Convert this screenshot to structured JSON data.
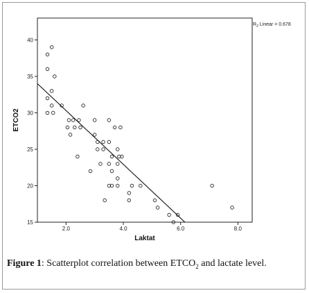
{
  "chart_data": {
    "type": "scatter",
    "title": "",
    "xlabel": "Laktat",
    "ylabel": "ETCO2",
    "xlim": [
      1.0,
      8.5
    ],
    "ylim": [
      15,
      43
    ],
    "xticks": [
      2.0,
      4.0,
      6.0,
      8.0
    ],
    "xtick_labels": [
      "2.0",
      "4.0",
      "6.0",
      "8.0"
    ],
    "yticks": [
      15,
      20,
      25,
      30,
      35,
      40
    ],
    "ytick_labels": [
      "15",
      "20",
      "25",
      "30",
      "35",
      "40"
    ],
    "grid": false,
    "legend_position": "top-right",
    "fit_line": {
      "label_prefix": "R",
      "label_sub": "2",
      "label_suffix": " Linear = 0.678",
      "x": [
        1.0,
        6.15
      ],
      "y": [
        34.0,
        15.0
      ]
    },
    "points": [
      {
        "x": 1.5,
        "y": 39
      },
      {
        "x": 1.35,
        "y": 38
      },
      {
        "x": 1.35,
        "y": 36
      },
      {
        "x": 1.6,
        "y": 35
      },
      {
        "x": 1.5,
        "y": 33
      },
      {
        "x": 1.35,
        "y": 32
      },
      {
        "x": 1.5,
        "y": 31
      },
      {
        "x": 1.85,
        "y": 31
      },
      {
        "x": 1.35,
        "y": 30
      },
      {
        "x": 1.55,
        "y": 30
      },
      {
        "x": 2.6,
        "y": 31
      },
      {
        "x": 2.1,
        "y": 29
      },
      {
        "x": 2.25,
        "y": 29
      },
      {
        "x": 2.45,
        "y": 29
      },
      {
        "x": 2.05,
        "y": 28
      },
      {
        "x": 2.3,
        "y": 28
      },
      {
        "x": 2.5,
        "y": 28
      },
      {
        "x": 2.15,
        "y": 27
      },
      {
        "x": 3.0,
        "y": 29
      },
      {
        "x": 3.5,
        "y": 29
      },
      {
        "x": 3.7,
        "y": 28
      },
      {
        "x": 3.9,
        "y": 28
      },
      {
        "x": 3.0,
        "y": 27
      },
      {
        "x": 3.1,
        "y": 26
      },
      {
        "x": 3.3,
        "y": 26
      },
      {
        "x": 3.5,
        "y": 26
      },
      {
        "x": 3.1,
        "y": 25
      },
      {
        "x": 3.3,
        "y": 25
      },
      {
        "x": 3.8,
        "y": 25
      },
      {
        "x": 2.4,
        "y": 24
      },
      {
        "x": 3.6,
        "y": 24
      },
      {
        "x": 3.85,
        "y": 24
      },
      {
        "x": 3.95,
        "y": 24
      },
      {
        "x": 3.2,
        "y": 23
      },
      {
        "x": 3.5,
        "y": 23
      },
      {
        "x": 3.8,
        "y": 23
      },
      {
        "x": 2.85,
        "y": 22
      },
      {
        "x": 3.6,
        "y": 22
      },
      {
        "x": 3.8,
        "y": 21
      },
      {
        "x": 3.5,
        "y": 20
      },
      {
        "x": 3.6,
        "y": 20
      },
      {
        "x": 3.8,
        "y": 20
      },
      {
        "x": 4.3,
        "y": 20
      },
      {
        "x": 4.6,
        "y": 20
      },
      {
        "x": 4.2,
        "y": 19
      },
      {
        "x": 3.35,
        "y": 18
      },
      {
        "x": 4.2,
        "y": 18
      },
      {
        "x": 5.1,
        "y": 18
      },
      {
        "x": 5.2,
        "y": 17
      },
      {
        "x": 5.6,
        "y": 16
      },
      {
        "x": 5.9,
        "y": 16
      },
      {
        "x": 5.75,
        "y": 15
      },
      {
        "x": 7.1,
        "y": 20
      },
      {
        "x": 7.8,
        "y": 17
      }
    ]
  },
  "caption": {
    "label": "Figure 1",
    "text_before": ": Scatterplot correlation between ETCO",
    "sub": "2",
    "text_after": " and lactate level."
  }
}
